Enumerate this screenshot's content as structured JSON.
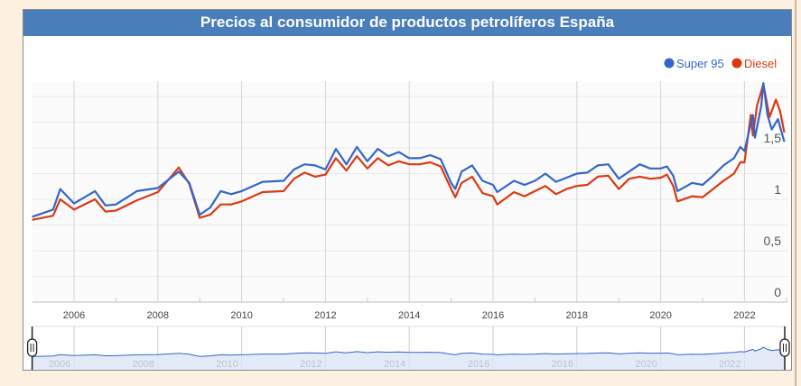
{
  "chart_data": {
    "type": "line",
    "title": "Precios al consumidor de productos petrolíferos España",
    "xlabel": "",
    "ylabel": "",
    "xlim": [
      2005.0,
      2023.0
    ],
    "ylim": [
      0,
      2.0
    ],
    "x_ticks": [
      "2006",
      "2008",
      "2010",
      "2012",
      "2014",
      "2016",
      "2018",
      "2020",
      "2022"
    ],
    "y_ticks": [
      "0",
      "0,5",
      "1",
      "1,5"
    ],
    "grid": true,
    "legend_position": "top-right",
    "navigator": true,
    "series": [
      {
        "name": "Super 95",
        "color": "#3366cc",
        "x": [
          2005.0,
          2005.5,
          2005.67,
          2006.0,
          2006.5,
          2006.75,
          2007.0,
          2007.5,
          2008.0,
          2008.5,
          2008.75,
          2009.0,
          2009.25,
          2009.5,
          2009.75,
          2010.0,
          2010.5,
          2011.0,
          2011.25,
          2011.5,
          2011.75,
          2012.0,
          2012.25,
          2012.5,
          2012.75,
          2013.0,
          2013.25,
          2013.5,
          2013.75,
          2014.0,
          2014.25,
          2014.5,
          2014.75,
          2015.0,
          2015.1,
          2015.25,
          2015.5,
          2015.75,
          2016.0,
          2016.1,
          2016.5,
          2016.75,
          2017.0,
          2017.25,
          2017.5,
          2017.75,
          2018.0,
          2018.25,
          2018.5,
          2018.75,
          2019.0,
          2019.25,
          2019.5,
          2019.75,
          2020.0,
          2020.15,
          2020.3,
          2020.4,
          2020.75,
          2021.0,
          2021.25,
          2021.5,
          2021.75,
          2021.9,
          2022.0,
          2022.2,
          2022.25,
          2022.4,
          2022.45,
          2022.55,
          2022.65,
          2022.8,
          2022.95
        ],
        "values": [
          0.83,
          0.9,
          1.1,
          0.96,
          1.08,
          0.94,
          0.95,
          1.08,
          1.11,
          1.27,
          1.16,
          0.85,
          0.92,
          1.08,
          1.05,
          1.08,
          1.17,
          1.18,
          1.29,
          1.34,
          1.33,
          1.29,
          1.49,
          1.34,
          1.51,
          1.37,
          1.49,
          1.42,
          1.46,
          1.4,
          1.4,
          1.43,
          1.39,
          1.16,
          1.1,
          1.27,
          1.33,
          1.18,
          1.14,
          1.07,
          1.18,
          1.14,
          1.18,
          1.25,
          1.17,
          1.21,
          1.25,
          1.26,
          1.33,
          1.34,
          1.2,
          1.27,
          1.34,
          1.3,
          1.3,
          1.32,
          1.23,
          1.08,
          1.16,
          1.14,
          1.23,
          1.33,
          1.4,
          1.51,
          1.47,
          1.82,
          1.6,
          1.91,
          2.13,
          1.82,
          1.68,
          1.78,
          1.56
        ]
      },
      {
        "name": "Diesel",
        "color": "#dc3912",
        "x": [
          2005.0,
          2005.5,
          2005.67,
          2006.0,
          2006.5,
          2006.75,
          2007.0,
          2007.5,
          2008.0,
          2008.5,
          2008.75,
          2009.0,
          2009.25,
          2009.5,
          2009.75,
          2010.0,
          2010.5,
          2011.0,
          2011.25,
          2011.5,
          2011.75,
          2012.0,
          2012.25,
          2012.5,
          2012.75,
          2013.0,
          2013.25,
          2013.5,
          2013.75,
          2014.0,
          2014.25,
          2014.5,
          2014.75,
          2015.0,
          2015.1,
          2015.25,
          2015.5,
          2015.75,
          2016.0,
          2016.1,
          2016.5,
          2016.75,
          2017.0,
          2017.25,
          2017.5,
          2017.75,
          2018.0,
          2018.25,
          2018.5,
          2018.75,
          2019.0,
          2019.25,
          2019.5,
          2019.75,
          2020.0,
          2020.15,
          2020.3,
          2020.4,
          2020.75,
          2021.0,
          2021.25,
          2021.5,
          2021.75,
          2021.9,
          2022.0,
          2022.15,
          2022.2,
          2022.3,
          2022.45,
          2022.6,
          2022.75,
          2022.85,
          2022.95
        ],
        "values": [
          0.8,
          0.84,
          1.0,
          0.9,
          1.0,
          0.88,
          0.89,
          0.99,
          1.07,
          1.31,
          1.15,
          0.82,
          0.85,
          0.95,
          0.95,
          0.98,
          1.07,
          1.08,
          1.2,
          1.26,
          1.22,
          1.24,
          1.4,
          1.28,
          1.42,
          1.3,
          1.4,
          1.33,
          1.37,
          1.34,
          1.34,
          1.36,
          1.32,
          1.1,
          1.02,
          1.16,
          1.22,
          1.06,
          1.03,
          0.95,
          1.07,
          1.03,
          1.08,
          1.13,
          1.05,
          1.1,
          1.13,
          1.14,
          1.22,
          1.23,
          1.1,
          1.2,
          1.22,
          1.2,
          1.21,
          1.24,
          1.13,
          0.98,
          1.03,
          1.02,
          1.1,
          1.18,
          1.25,
          1.36,
          1.36,
          1.82,
          1.62,
          1.91,
          2.12,
          1.8,
          1.97,
          1.86,
          1.65
        ]
      }
    ]
  }
}
